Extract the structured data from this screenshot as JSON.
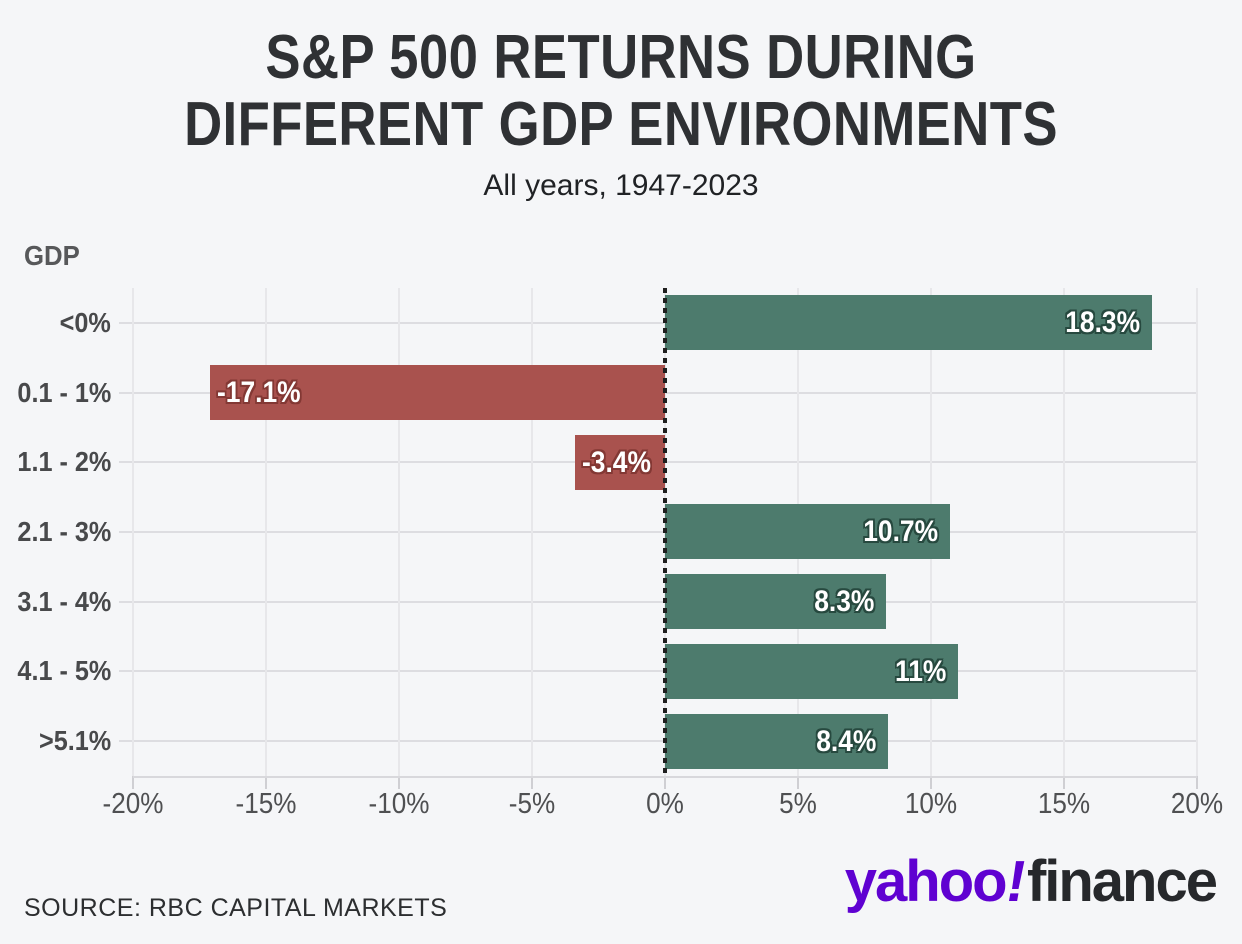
{
  "page": {
    "background": "#f5f6f8"
  },
  "header": {
    "title_line1": "S&P 500 RETURNS DURING",
    "title_line2": "DIFFERENT GDP ENVIRONMENTS",
    "subtitle": "All years, 1947-2023"
  },
  "chart_data": {
    "type": "bar",
    "orientation": "horizontal",
    "title": "S&P 500 RETURNS DURING DIFFERENT GDP ENVIRONMENTS",
    "subtitle": "All years, 1947-2023",
    "y_axis_title": "GDP",
    "categories": [
      "<0%",
      "0.1 - 1%",
      "1.1 - 2%",
      "2.1 - 3%",
      "3.1 - 4%",
      "4.1 - 5%",
      ">5.1%"
    ],
    "values": [
      18.3,
      -17.1,
      -3.4,
      10.7,
      8.3,
      11,
      8.4
    ],
    "value_labels": [
      "18.3%",
      "-17.1%",
      "-3.4%",
      "10.7%",
      "8.3%",
      "11%",
      "8.4%"
    ],
    "xlim": [
      -20,
      20
    ],
    "x_ticks": [
      -20,
      -15,
      -10,
      -5,
      0,
      5,
      10,
      15,
      20
    ],
    "x_tick_labels": [
      "-20%",
      "-15%",
      "-10%",
      "-5%",
      "0%",
      "5%",
      "10%",
      "15%",
      "20%"
    ],
    "grid": true,
    "legend": false,
    "zero_line": "dotted-vertical",
    "colors": {
      "positive_bar": "#4d7b6d",
      "negative_bar": "#a9524e",
      "positive_label_outline": "#27493f",
      "negative_label_outline": "#833834",
      "zero_line": "#1f1f1f",
      "v_gridline": "#e7e7ea",
      "h_gridline": "#dddde1",
      "axis_line": "#d8d8dc",
      "tick_mark": "#cfcfd3"
    }
  },
  "footer": {
    "source": "SOURCE: RBC CAPITAL MARKETS",
    "logo": {
      "yahoo": "yahoo",
      "exclamation": "!",
      "finance": "finance",
      "yahoo_color": "#5f01d1",
      "finance_color": "#26282b"
    }
  }
}
